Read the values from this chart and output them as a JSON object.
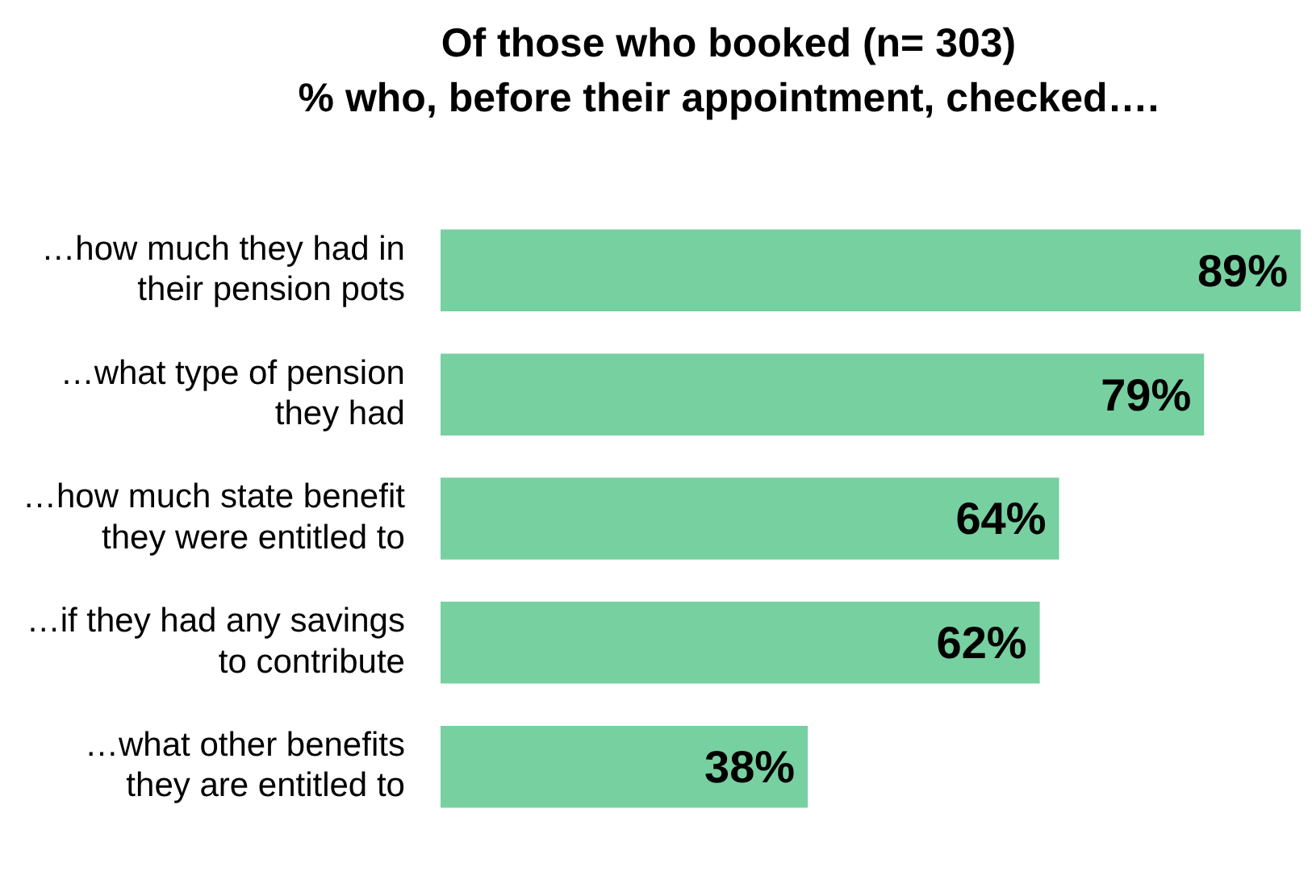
{
  "chart_data": {
    "type": "bar",
    "orientation": "horizontal",
    "title": "Of those who booked (n= 303)",
    "subtitle": "% who, before their appointment, checked….",
    "categories": [
      "…how much they had in their pension pots",
      "…what type of pension they had",
      "…how much state benefit they were entitled to",
      "…if they had any savings to contribute",
      "…what other benefits they are entitled to"
    ],
    "values": [
      89,
      79,
      64,
      62,
      38
    ],
    "value_labels": [
      "89%",
      "79%",
      "64%",
      "62%",
      "38%"
    ],
    "color": "#77d0a0",
    "tick_labels": "y"
  }
}
